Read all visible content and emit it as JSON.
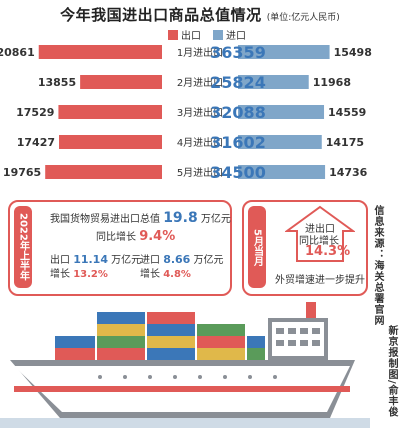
{
  "header": {
    "title": "今年我国进出口商品总值情况",
    "unit": "(单位:亿元人民币)",
    "legend_export": "出口",
    "legend_import": "进口"
  },
  "colors": {
    "export": "#e05a57",
    "import": "#7fa6c9",
    "total": "#3b77b8"
  },
  "chart_data": {
    "type": "bar",
    "categories": [
      "1月进出口",
      "2月进出口",
      "3月进出口",
      "4月进出口",
      "5月进出口"
    ],
    "series": [
      {
        "name": "出口",
        "values": [
          20861,
          13855,
          17529,
          17427,
          19765
        ]
      },
      {
        "name": "进口",
        "values": [
          15498,
          11968,
          14559,
          14175,
          14736
        ]
      }
    ],
    "totals": [
      36359,
      25824,
      32088,
      31602,
      34500
    ]
  },
  "h1": {
    "label": "2022年上半年",
    "line1_pre": "我国货物贸易进出口总值",
    "line1_num": "19.8",
    "line1_post": "万亿元",
    "line2_pre": "同比增长",
    "line2_pct": "9.4%",
    "export_label": "出口",
    "export_num": "11.14",
    "export_unit": "万亿元",
    "export_growth_pre": "增长",
    "export_growth": "13.2%",
    "import_label": "进口",
    "import_num": "8.66",
    "import_unit": "万亿元",
    "import_growth_pre": "增长",
    "import_growth": "4.8%"
  },
  "may": {
    "label": "5月当月",
    "line1": "进出口",
    "line2": "同比增长",
    "pct": "14.3%",
    "caption": "外贸增速进一步提升"
  },
  "side": {
    "source": "信息来源：海关总署官网",
    "credit": "新京报制图/俞丰俊"
  }
}
